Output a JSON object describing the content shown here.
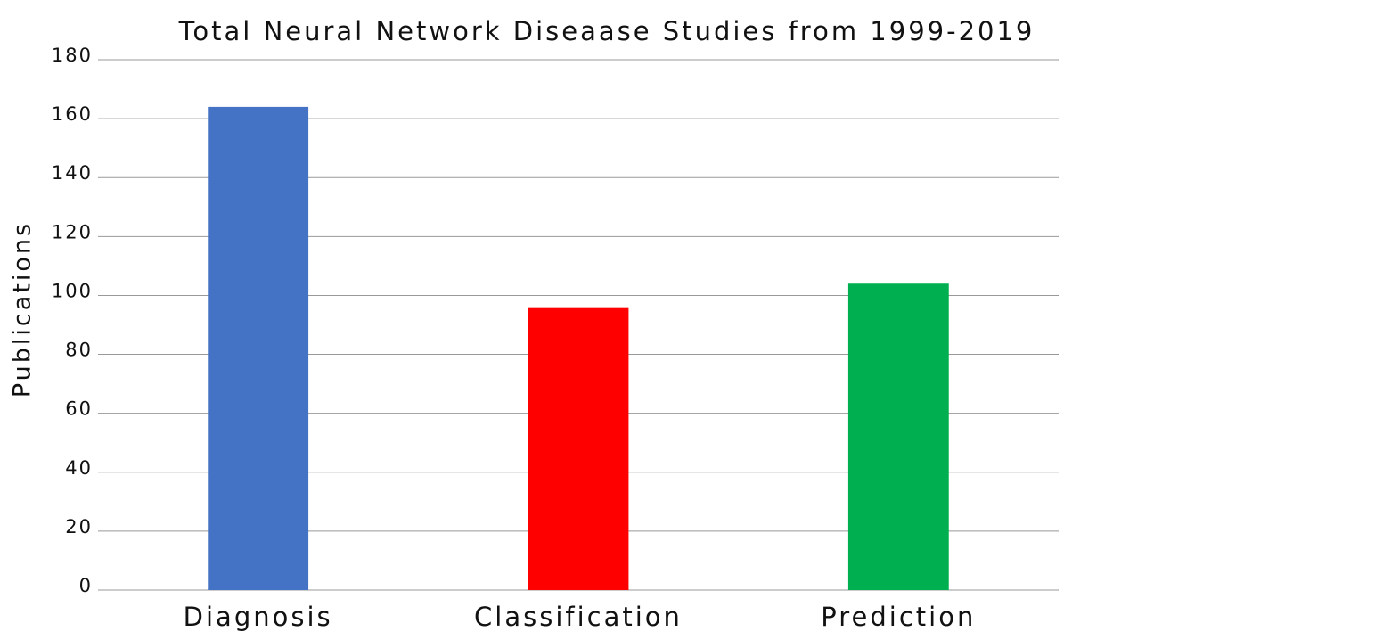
{
  "chart_data": {
    "type": "bar",
    "title": "Total Neural Network Diseaase Studies from 1999-2019",
    "y_label": "Publications",
    "categories": [
      "Diagnosis",
      "Classification",
      "Prediction"
    ],
    "values": [
      164,
      96,
      104
    ],
    "colors": [
      "#4472c4",
      "#ff0000",
      "#00b050"
    ],
    "ylim": [
      0,
      180
    ],
    "yticks": [
      0,
      20,
      40,
      60,
      80,
      100,
      120,
      140,
      160,
      180
    ],
    "grid": true
  }
}
